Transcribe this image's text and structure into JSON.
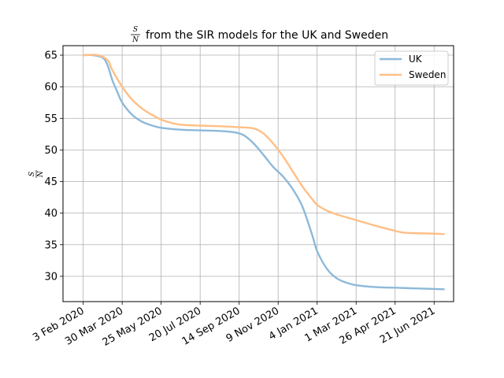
{
  "chart_data": {
    "type": "line",
    "title": {
      "fraction_numerator": "S",
      "fraction_denominator": "N",
      "text": "from the SIR models for the UK and Sweden"
    },
    "ylabel": {
      "fraction_numerator": "S",
      "fraction_denominator": "N"
    },
    "xlabel": "",
    "x_ticks": [
      "3 Feb 2020",
      "30 Mar 2020",
      "25 May 2020",
      "20 Jul 2020",
      "14 Sep 2020",
      "9 Nov 2020",
      "4 Jan 2021",
      "1 Mar 2021",
      "26 Apr 2021",
      "21 Jun 2021"
    ],
    "x_tick_dates": [
      "2020-02-03",
      "2020-03-30",
      "2020-05-25",
      "2020-07-20",
      "2020-09-14",
      "2020-11-09",
      "2021-01-04",
      "2021-03-01",
      "2021-04-26",
      "2021-06-21"
    ],
    "y_ticks": [
      30,
      35,
      40,
      45,
      50,
      55,
      60,
      65
    ],
    "xlim": [
      "2020-01-05",
      "2021-07-19"
    ],
    "ylim": [
      26,
      66.5
    ],
    "grid": true,
    "legend_position": "top-right",
    "series": [
      {
        "name": "UK",
        "color": "#8db9da",
        "points": [
          [
            "2020-02-03",
            65.0
          ],
          [
            "2020-02-17",
            65.0
          ],
          [
            "2020-03-02",
            64.6
          ],
          [
            "2020-03-09",
            63.4
          ],
          [
            "2020-03-16",
            61.0
          ],
          [
            "2020-03-23",
            59.2
          ],
          [
            "2020-03-30",
            57.5
          ],
          [
            "2020-04-13",
            55.6
          ],
          [
            "2020-04-27",
            54.5
          ],
          [
            "2020-05-11",
            53.9
          ],
          [
            "2020-05-25",
            53.5
          ],
          [
            "2020-06-22",
            53.2
          ],
          [
            "2020-07-20",
            53.1
          ],
          [
            "2020-08-17",
            53.0
          ],
          [
            "2020-09-07",
            52.8
          ],
          [
            "2020-09-21",
            52.3
          ],
          [
            "2020-10-05",
            51.0
          ],
          [
            "2020-10-19",
            49.2
          ],
          [
            "2020-11-02",
            47.3
          ],
          [
            "2020-11-16",
            45.8
          ],
          [
            "2020-11-30",
            43.8
          ],
          [
            "2020-12-14",
            41.0
          ],
          [
            "2020-12-28",
            36.5
          ],
          [
            "2021-01-04",
            34.0
          ],
          [
            "2021-01-18",
            31.2
          ],
          [
            "2021-02-01",
            29.7
          ],
          [
            "2021-02-15",
            29.0
          ],
          [
            "2021-03-01",
            28.6
          ],
          [
            "2021-03-29",
            28.3
          ],
          [
            "2021-04-26",
            28.2
          ],
          [
            "2021-05-24",
            28.1
          ],
          [
            "2021-06-21",
            28.0
          ],
          [
            "2021-07-05",
            27.95
          ]
        ]
      },
      {
        "name": "Sweden",
        "color": "#ffbf86",
        "points": [
          [
            "2020-02-03",
            65.0
          ],
          [
            "2020-02-24",
            65.0
          ],
          [
            "2020-03-09",
            64.2
          ],
          [
            "2020-03-16",
            62.6
          ],
          [
            "2020-03-30",
            60.0
          ],
          [
            "2020-04-13",
            58.0
          ],
          [
            "2020-04-27",
            56.6
          ],
          [
            "2020-05-11",
            55.6
          ],
          [
            "2020-05-25",
            54.8
          ],
          [
            "2020-06-08",
            54.3
          ],
          [
            "2020-06-22",
            54.0
          ],
          [
            "2020-07-20",
            53.85
          ],
          [
            "2020-08-17",
            53.75
          ],
          [
            "2020-09-14",
            53.6
          ],
          [
            "2020-10-05",
            53.4
          ],
          [
            "2020-10-19",
            52.6
          ],
          [
            "2020-11-02",
            51.0
          ],
          [
            "2020-11-16",
            49.0
          ],
          [
            "2020-11-30",
            46.6
          ],
          [
            "2020-12-14",
            44.2
          ],
          [
            "2020-12-28",
            42.2
          ],
          [
            "2021-01-04",
            41.3
          ],
          [
            "2021-01-18",
            40.4
          ],
          [
            "2021-02-01",
            39.8
          ],
          [
            "2021-03-01",
            38.9
          ],
          [
            "2021-03-29",
            38.0
          ],
          [
            "2021-04-26",
            37.2
          ],
          [
            "2021-05-10",
            36.9
          ],
          [
            "2021-06-07",
            36.8
          ],
          [
            "2021-07-05",
            36.7
          ]
        ]
      }
    ]
  }
}
